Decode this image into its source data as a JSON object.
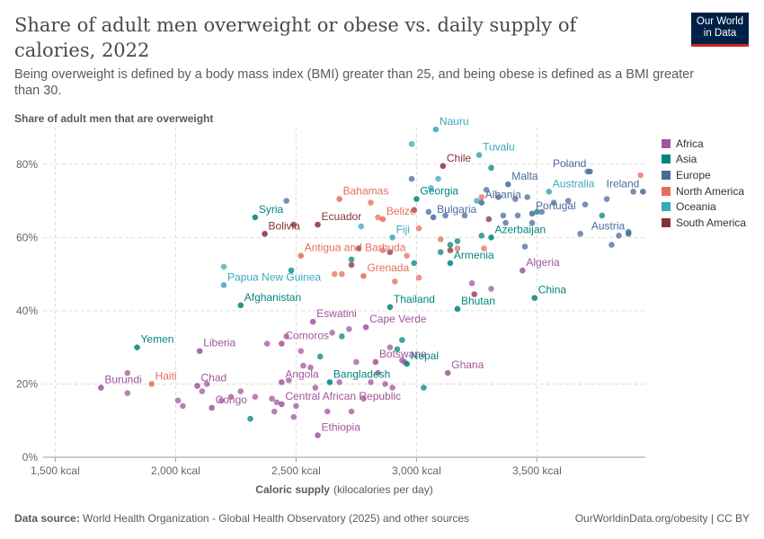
{
  "header": {
    "title": "Share of adult men overweight or obese vs. daily supply of calories, 2022",
    "subtitle": "Being overweight is defined by a body mass index (BMI) greater than 25, and being obese is defined as a BMI greater than 30.",
    "logo_line1": "Our World",
    "logo_line2": "in Data"
  },
  "footer": {
    "source_label": "Data source:",
    "source_text": "World Health Organization - Global Health Observatory (2025) and other sources",
    "right_text": "OurWorldinData.org/obesity | CC BY"
  },
  "colors": {
    "Africa": "#a2559c",
    "Asia": "#00847e",
    "Europe": "#4c6a9c",
    "North America": "#e56e5a",
    "Oceania": "#38aaba",
    "South America": "#883039"
  },
  "chart_data": {
    "type": "scatter",
    "title": "Share of adult men overweight or obese vs. daily supply of calories, 2022",
    "ylabel": "Share of adult men that are overweight",
    "xlabel": "Caloric supply",
    "xlabel_unit": "(kilocalories per day)",
    "xlim": [
      1450,
      3950
    ],
    "ylim": [
      0,
      90
    ],
    "xticks": [
      1500,
      2000,
      2500,
      3000,
      3500
    ],
    "xtick_labels": [
      "1,500 kcal",
      "2,000 kcal",
      "2,500 kcal",
      "3,000 kcal",
      "3,500 kcal"
    ],
    "yticks": [
      0,
      20,
      40,
      60,
      80
    ],
    "ytick_labels": [
      "0%",
      "20%",
      "40%",
      "60%",
      "80%"
    ],
    "grid": true,
    "legend_position": "right",
    "legend": [
      "Africa",
      "Asia",
      "Europe",
      "North America",
      "Oceania",
      "South America"
    ],
    "labeled_points": [
      {
        "label": "Burundi",
        "region": "Africa",
        "x": 1690,
        "y": 19
      },
      {
        "label": "Haiti",
        "region": "North America",
        "x": 1900,
        "y": 20
      },
      {
        "label": "Yemen",
        "region": "Asia",
        "x": 1840,
        "y": 30
      },
      {
        "label": "Liberia",
        "region": "Africa",
        "x": 2100,
        "y": 29
      },
      {
        "label": "Chad",
        "region": "Africa",
        "x": 2090,
        "y": 19.5
      },
      {
        "label": "Congo",
        "region": "Africa",
        "x": 2150,
        "y": 13.5
      },
      {
        "label": "Afghanistan",
        "region": "Asia",
        "x": 2270,
        "y": 41.5
      },
      {
        "label": "Papua New Guinea",
        "region": "Oceania",
        "x": 2200,
        "y": 47
      },
      {
        "label": "Syria",
        "region": "Asia",
        "x": 2330,
        "y": 65.5
      },
      {
        "label": "Bolivia",
        "region": "South America",
        "x": 2370,
        "y": 61
      },
      {
        "label": "Ecuador",
        "region": "South America",
        "x": 2590,
        "y": 63.5
      },
      {
        "label": "Comoros",
        "region": "Africa",
        "x": 2440,
        "y": 31
      },
      {
        "label": "Angola",
        "region": "Africa",
        "x": 2440,
        "y": 20.5
      },
      {
        "label": "Central African Republic",
        "region": "Africa",
        "x": 2440,
        "y": 14.5
      },
      {
        "label": "Eswatini",
        "region": "Africa",
        "x": 2570,
        "y": 37
      },
      {
        "label": "Bangladesh",
        "region": "Asia",
        "x": 2640,
        "y": 20.5
      },
      {
        "label": "Ethiopia",
        "region": "Africa",
        "x": 2590,
        "y": 6
      },
      {
        "label": "Bahamas",
        "region": "North America",
        "x": 2680,
        "y": 70.5
      },
      {
        "label": "Antigua and Barbuda",
        "region": "North America",
        "x": 2520,
        "y": 55
      },
      {
        "label": "Grenada",
        "region": "North America",
        "x": 2780,
        "y": 49.5
      },
      {
        "label": "Cape Verde",
        "region": "Africa",
        "x": 2790,
        "y": 35.5
      },
      {
        "label": "Botswana",
        "region": "Africa",
        "x": 2830,
        "y": 26
      },
      {
        "label": "Belize",
        "region": "North America",
        "x": 2860,
        "y": 65
      },
      {
        "label": "Fiji",
        "region": "Oceania",
        "x": 2900,
        "y": 60
      },
      {
        "label": "Nepal",
        "region": "Asia",
        "x": 2960,
        "y": 25.5
      },
      {
        "label": "Thailand",
        "region": "Asia",
        "x": 2890,
        "y": 41
      },
      {
        "label": "Georgia",
        "region": "Asia",
        "x": 3000,
        "y": 70.5
      },
      {
        "label": "Bulgaria",
        "region": "Europe",
        "x": 3070,
        "y": 65.5
      },
      {
        "label": "Nauru",
        "region": "Oceania",
        "x": 3080,
        "y": 89.5
      },
      {
        "label": "Tuvalu",
        "region": "Oceania",
        "x": 3260,
        "y": 82.5
      },
      {
        "label": "Chile",
        "region": "South America",
        "x": 3110,
        "y": 79.5
      },
      {
        "label": "Ghana",
        "region": "Africa",
        "x": 3130,
        "y": 23
      },
      {
        "label": "Armenia",
        "region": "Asia",
        "x": 3140,
        "y": 53
      },
      {
        "label": "Bhutan",
        "region": "Asia",
        "x": 3170,
        "y": 40.5
      },
      {
        "label": "Azerbaijan",
        "region": "Asia",
        "x": 3310,
        "y": 60
      },
      {
        "label": "Albania",
        "region": "Europe",
        "x": 3270,
        "y": 69.5
      },
      {
        "label": "Malta",
        "region": "Europe",
        "x": 3380,
        "y": 74.5
      },
      {
        "label": "Portugal",
        "region": "Europe",
        "x": 3480,
        "y": 66.5
      },
      {
        "label": "Algeria",
        "region": "Africa",
        "x": 3440,
        "y": 51
      },
      {
        "label": "China",
        "region": "Asia",
        "x": 3490,
        "y": 43.5
      },
      {
        "label": "Australia",
        "region": "Oceania",
        "x": 3550,
        "y": 72.5
      },
      {
        "label": "Poland",
        "region": "Europe",
        "x": 3720,
        "y": 78
      },
      {
        "label": "Ireland",
        "region": "Europe",
        "x": 3940,
        "y": 72.5
      },
      {
        "label": "Austria",
        "region": "Europe",
        "x": 3880,
        "y": 61
      }
    ],
    "unlabeled_points": [
      {
        "region": "Africa",
        "x": 1800,
        "y": 17.5
      },
      {
        "region": "Africa",
        "x": 1800,
        "y": 23
      },
      {
        "region": "Africa",
        "x": 2010,
        "y": 15.5
      },
      {
        "region": "Africa",
        "x": 2030,
        "y": 14
      },
      {
        "region": "Africa",
        "x": 2110,
        "y": 18
      },
      {
        "region": "Africa",
        "x": 2130,
        "y": 20
      },
      {
        "region": "Africa",
        "x": 2190,
        "y": 15.5
      },
      {
        "region": "Africa",
        "x": 2230,
        "y": 16.5
      },
      {
        "region": "Africa",
        "x": 2270,
        "y": 18
      },
      {
        "region": "Africa",
        "x": 2330,
        "y": 16.5
      },
      {
        "region": "Africa",
        "x": 2380,
        "y": 31
      },
      {
        "region": "Africa",
        "x": 2400,
        "y": 16
      },
      {
        "region": "Africa",
        "x": 2410,
        "y": 12.5
      },
      {
        "region": "Africa",
        "x": 2420,
        "y": 15
      },
      {
        "region": "Africa",
        "x": 2460,
        "y": 33
      },
      {
        "region": "Africa",
        "x": 2470,
        "y": 21
      },
      {
        "region": "Africa",
        "x": 2490,
        "y": 11
      },
      {
        "region": "Africa",
        "x": 2500,
        "y": 14
      },
      {
        "region": "Africa",
        "x": 2520,
        "y": 29
      },
      {
        "region": "Africa",
        "x": 2530,
        "y": 25
      },
      {
        "region": "Africa",
        "x": 2560,
        "y": 24.5
      },
      {
        "region": "Africa",
        "x": 2580,
        "y": 19
      },
      {
        "region": "Africa",
        "x": 2630,
        "y": 12.5
      },
      {
        "region": "Africa",
        "x": 2650,
        "y": 34
      },
      {
        "region": "Africa",
        "x": 2680,
        "y": 20.5
      },
      {
        "region": "Africa",
        "x": 2720,
        "y": 35
      },
      {
        "region": "Africa",
        "x": 2730,
        "y": 12.5
      },
      {
        "region": "Africa",
        "x": 2750,
        "y": 26
      },
      {
        "region": "Africa",
        "x": 2780,
        "y": 16
      },
      {
        "region": "Africa",
        "x": 2810,
        "y": 20.5
      },
      {
        "region": "Africa",
        "x": 2840,
        "y": 23
      },
      {
        "region": "Africa",
        "x": 2870,
        "y": 20
      },
      {
        "region": "Africa",
        "x": 2890,
        "y": 30
      },
      {
        "region": "Africa",
        "x": 2900,
        "y": 19
      },
      {
        "region": "Africa",
        "x": 2940,
        "y": 26.5
      },
      {
        "region": "Africa",
        "x": 2950,
        "y": 26
      },
      {
        "region": "Africa",
        "x": 3230,
        "y": 47.5
      },
      {
        "region": "Africa",
        "x": 3310,
        "y": 46
      },
      {
        "region": "Asia",
        "x": 2310,
        "y": 10.5
      },
      {
        "region": "Asia",
        "x": 2480,
        "y": 51
      },
      {
        "region": "Asia",
        "x": 2600,
        "y": 27.5
      },
      {
        "region": "Asia",
        "x": 2690,
        "y": 33
      },
      {
        "region": "Asia",
        "x": 2730,
        "y": 54
      },
      {
        "region": "Asia",
        "x": 2920,
        "y": 29.5
      },
      {
        "region": "Asia",
        "x": 2940,
        "y": 32
      },
      {
        "region": "Asia",
        "x": 2990,
        "y": 53
      },
      {
        "region": "Asia",
        "x": 3030,
        "y": 19
      },
      {
        "region": "Asia",
        "x": 3100,
        "y": 56
      },
      {
        "region": "Asia",
        "x": 3140,
        "y": 58
      },
      {
        "region": "Asia",
        "x": 3170,
        "y": 59
      },
      {
        "region": "Asia",
        "x": 3270,
        "y": 60.5
      },
      {
        "region": "Asia",
        "x": 3310,
        "y": 79
      },
      {
        "region": "Asia",
        "x": 3500,
        "y": 67
      },
      {
        "region": "Asia",
        "x": 3770,
        "y": 66
      },
      {
        "region": "Asia",
        "x": 3880,
        "y": 61.5
      },
      {
        "region": "Europe",
        "x": 2460,
        "y": 70
      },
      {
        "region": "Europe",
        "x": 2980,
        "y": 76
      },
      {
        "region": "Europe",
        "x": 3050,
        "y": 67
      },
      {
        "region": "Europe",
        "x": 3120,
        "y": 66
      },
      {
        "region": "Europe",
        "x": 3200,
        "y": 66
      },
      {
        "region": "Europe",
        "x": 3290,
        "y": 73
      },
      {
        "region": "Europe",
        "x": 3340,
        "y": 71
      },
      {
        "region": "Europe",
        "x": 3360,
        "y": 66
      },
      {
        "region": "Europe",
        "x": 3370,
        "y": 64
      },
      {
        "region": "Europe",
        "x": 3410,
        "y": 70.5
      },
      {
        "region": "Europe",
        "x": 3420,
        "y": 66
      },
      {
        "region": "Europe",
        "x": 3450,
        "y": 57.5
      },
      {
        "region": "Europe",
        "x": 3460,
        "y": 71
      },
      {
        "region": "Europe",
        "x": 3480,
        "y": 64
      },
      {
        "region": "Europe",
        "x": 3520,
        "y": 67
      },
      {
        "region": "Europe",
        "x": 3570,
        "y": 69.5
      },
      {
        "region": "Europe",
        "x": 3630,
        "y": 70
      },
      {
        "region": "Europe",
        "x": 3680,
        "y": 61
      },
      {
        "region": "Europe",
        "x": 3700,
        "y": 69
      },
      {
        "region": "Europe",
        "x": 3710,
        "y": 78
      },
      {
        "region": "Europe",
        "x": 3790,
        "y": 70.5
      },
      {
        "region": "Europe",
        "x": 3810,
        "y": 58
      },
      {
        "region": "Europe",
        "x": 3840,
        "y": 60.5
      },
      {
        "region": "Europe",
        "x": 3900,
        "y": 72.5
      },
      {
        "region": "North America",
        "x": 2660,
        "y": 50
      },
      {
        "region": "North America",
        "x": 2690,
        "y": 50
      },
      {
        "region": "North America",
        "x": 2810,
        "y": 69.5
      },
      {
        "region": "North America",
        "x": 2840,
        "y": 65.5
      },
      {
        "region": "North America",
        "x": 2860,
        "y": 56.5
      },
      {
        "region": "North America",
        "x": 2910,
        "y": 48
      },
      {
        "region": "North America",
        "x": 2960,
        "y": 55
      },
      {
        "region": "North America",
        "x": 3010,
        "y": 62.5
      },
      {
        "region": "North America",
        "x": 3010,
        "y": 49
      },
      {
        "region": "North America",
        "x": 3100,
        "y": 59.5
      },
      {
        "region": "North America",
        "x": 3170,
        "y": 57
      },
      {
        "region": "North America",
        "x": 3270,
        "y": 71
      },
      {
        "region": "North America",
        "x": 3280,
        "y": 57
      },
      {
        "region": "North America",
        "x": 3930,
        "y": 77
      },
      {
        "region": "Oceania",
        "x": 2200,
        "y": 52
      },
      {
        "region": "Oceania",
        "x": 2770,
        "y": 63
      },
      {
        "region": "Oceania",
        "x": 2980,
        "y": 85.5
      },
      {
        "region": "Oceania",
        "x": 3060,
        "y": 73.5
      },
      {
        "region": "Oceania",
        "x": 3090,
        "y": 76
      },
      {
        "region": "Oceania",
        "x": 3250,
        "y": 70
      },
      {
        "region": "South America",
        "x": 2490,
        "y": 63.5
      },
      {
        "region": "South America",
        "x": 2730,
        "y": 52.5
      },
      {
        "region": "South America",
        "x": 2760,
        "y": 57
      },
      {
        "region": "South America",
        "x": 2890,
        "y": 56
      },
      {
        "region": "South America",
        "x": 2990,
        "y": 67.5
      },
      {
        "region": "South America",
        "x": 3140,
        "y": 56.5
      },
      {
        "region": "South America",
        "x": 3240,
        "y": 44.5
      },
      {
        "region": "South America",
        "x": 3300,
        "y": 65
      }
    ]
  }
}
